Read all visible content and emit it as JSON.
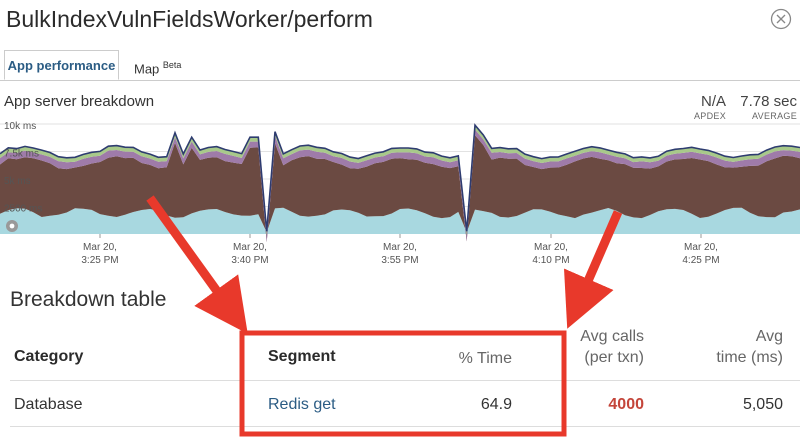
{
  "window": {
    "title": "BulkIndexVulnFieldsWorker/perform"
  },
  "tabs": [
    {
      "label": "App performance"
    },
    {
      "label": "Map",
      "badge": "Beta"
    }
  ],
  "breakdown": {
    "title": "App server breakdown",
    "apdex": {
      "value": "N/A",
      "label": "APDEX"
    },
    "average": {
      "value": "7.78 sec",
      "label": "AVERAGE"
    }
  },
  "chart_data": {
    "type": "area",
    "yticks": [
      "10k ms",
      "7.5k ms",
      "5k ms",
      "2500 ms"
    ],
    "xticks": [
      {
        "line1": "Mar 20,",
        "line2": "3:25 PM"
      },
      {
        "line1": "Mar 20,",
        "line2": "3:40 PM"
      },
      {
        "line1": "Mar 20,",
        "line2": "3:55 PM"
      },
      {
        "line1": "Mar 20,",
        "line2": "4:10 PM"
      },
      {
        "line1": "Mar 20,",
        "line2": "4:25 PM"
      }
    ],
    "ylim": [
      0,
      10000
    ],
    "colors": {
      "base": "#a8d8e0",
      "main": "#6b4a42",
      "purple": "#9f7ba9",
      "green": "#a8c98a",
      "outline": "#2e3c70"
    }
  },
  "table": {
    "title": "Breakdown table",
    "columns": {
      "category": "Category",
      "segment": "Segment",
      "pct_time": "% Time",
      "avg_calls_l1": "Avg calls",
      "avg_calls_l2": "(per txn)",
      "avg_time_l1": "Avg",
      "avg_time_l2": "time (ms)"
    },
    "rows": [
      {
        "category": "Database",
        "segment": "Redis get",
        "pct_time": "64.9",
        "avg_calls": "4000",
        "avg_time": "5,050"
      }
    ]
  },
  "colors": {
    "annotation": "#e8392b",
    "link": "#2b5c84"
  }
}
